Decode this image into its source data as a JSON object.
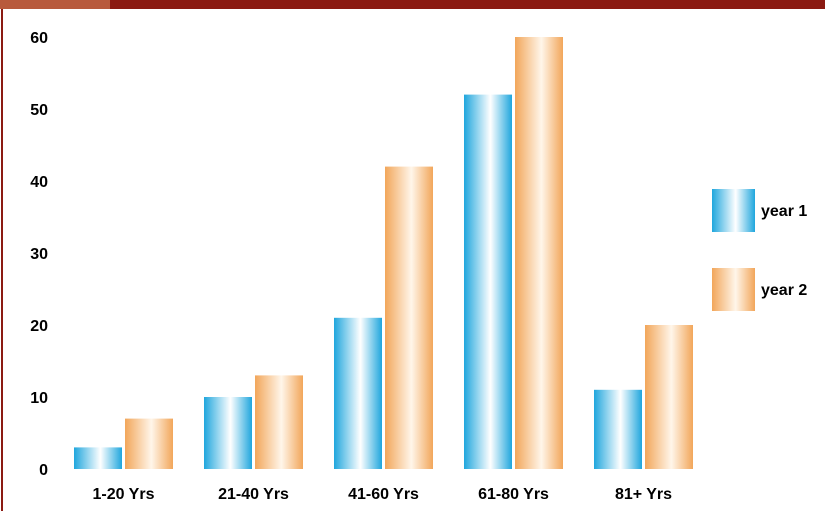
{
  "chart_data": {
    "type": "bar",
    "title": "",
    "xlabel": "",
    "ylabel": "",
    "categories": [
      "1-20 Yrs",
      "21-40 Yrs",
      "41-60 Yrs",
      "61-80 Yrs",
      "81+ Yrs"
    ],
    "series": [
      {
        "name": "year 1",
        "values": [
          3,
          10,
          21,
          52,
          11
        ],
        "color": "#29b0e4"
      },
      {
        "name": "year 2",
        "values": [
          7,
          13,
          42,
          60,
          20
        ],
        "color": "#f2a65a"
      }
    ],
    "ylim": [
      0,
      60
    ],
    "yticks": [
      "0",
      "10",
      "20",
      "30",
      "40",
      "50",
      "60"
    ],
    "grid": false,
    "legend_position": "right"
  },
  "theme": {
    "header_color": "#8b1a12",
    "header_tab_color": "#b85a3c",
    "frame_color": "#8b1a12"
  }
}
